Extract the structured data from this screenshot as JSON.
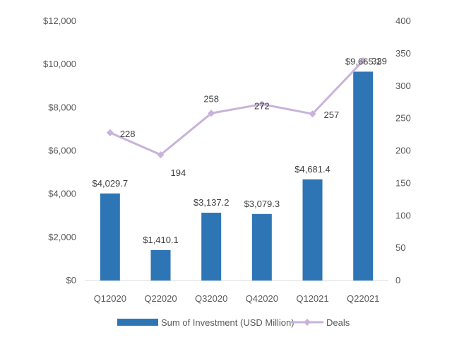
{
  "chart_data": {
    "type": "bar",
    "title": "",
    "xlabel": "",
    "ylabel": "",
    "categories": [
      "Q12020",
      "Q22020",
      "Q32020",
      "Q42020",
      "Q12021",
      "Q22021"
    ],
    "series": [
      {
        "name": "Sum of Investment (USD Million)",
        "type": "bar",
        "axis": "left",
        "color": "#2E75B6",
        "values": [
          4029.7,
          1410.1,
          3137.2,
          3079.3,
          4681.4,
          9665.1
        ],
        "labels": [
          "$4,029.7",
          "$1,410.1",
          "$3,137.2",
          "$3,079.3",
          "$4,681.4",
          "$9,665.1"
        ]
      },
      {
        "name": "Deals",
        "type": "line",
        "axis": "right",
        "color": "#C9B3D9",
        "values": [
          228,
          194,
          258,
          272,
          257,
          339
        ],
        "labels": [
          "228",
          "194",
          "258",
          "272",
          "257",
          "339"
        ]
      }
    ],
    "ylim_left": [
      0,
      12000
    ],
    "ylim_right": [
      0,
      400
    ],
    "left_ticks": [
      0,
      2000,
      4000,
      6000,
      8000,
      10000,
      12000
    ],
    "left_tick_labels": [
      "$0",
      "$2,000",
      "$4,000",
      "$6,000",
      "$8,000",
      "$10,000",
      "$12,000"
    ],
    "right_ticks": [
      0,
      50,
      100,
      150,
      200,
      250,
      300,
      350,
      400
    ],
    "right_tick_labels": [
      "0",
      "50",
      "100",
      "150",
      "200",
      "250",
      "300",
      "350",
      "400"
    ],
    "grid": false,
    "legend_position": "bottom"
  }
}
